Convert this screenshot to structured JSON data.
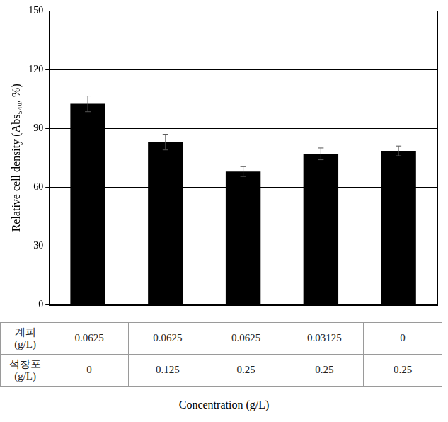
{
  "chart_data": {
    "type": "bar",
    "categories": [
      null,
      null,
      null,
      null,
      null
    ],
    "values": [
      102.5,
      83,
      68,
      77,
      78.5
    ],
    "errors": [
      4,
      4,
      2.5,
      3,
      2.5
    ],
    "color": "#000000",
    "y_label": "Relative cell density (Abs₅₄₀, %)",
    "x_label": "Concentration (g/L)",
    "ylim": [
      0,
      150
    ],
    "yticks": [
      0,
      30,
      60,
      90,
      120,
      150
    ],
    "grid": true,
    "table": {
      "rows": [
        {
          "label": "계피\n(g/L)",
          "values": [
            0.0625,
            0.0625,
            0.0625,
            0.03125,
            0
          ]
        },
        {
          "label": "석창포\n(g/L)",
          "values": [
            0,
            0.125,
            0.25,
            0.25,
            0.25
          ]
        }
      ]
    }
  }
}
